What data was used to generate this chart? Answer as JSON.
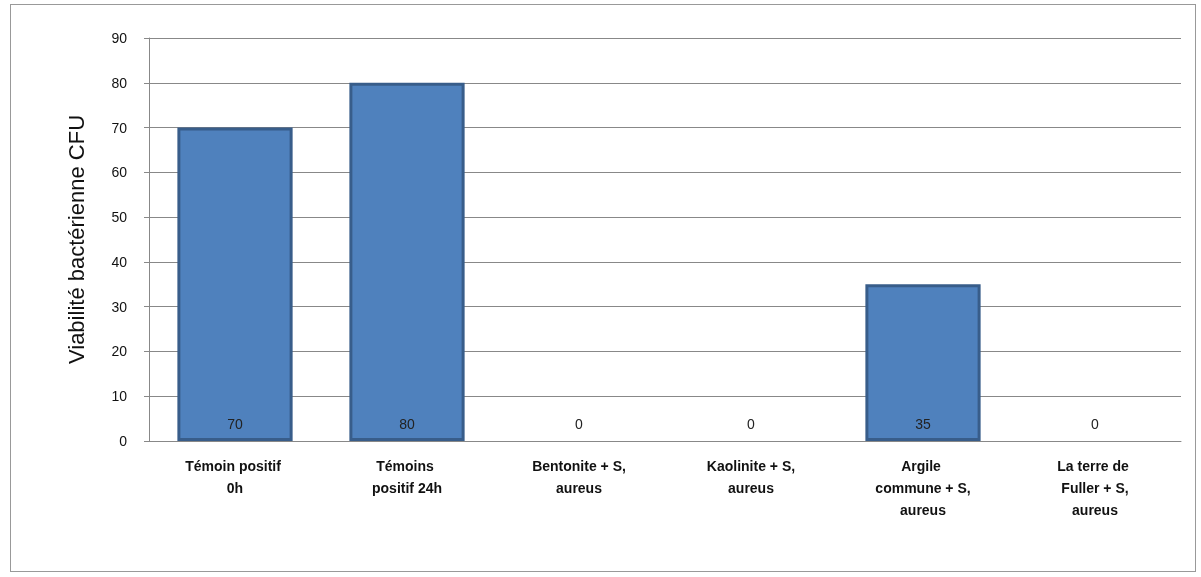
{
  "chart_data": {
    "type": "bar",
    "ylabel": "Viabilité bactérienne CFU",
    "categories": [
      "Témoin positif 0h",
      "Témoins positif 24h",
      "Bentonite + S,aureus",
      "Kaolinite + S,aureus",
      "Argile commune + S,aureus",
      "La terre de Fuller + S,aureus"
    ],
    "values": [
      70,
      80,
      0,
      0,
      35,
      0
    ],
    "color": "#4f81bd",
    "ylim": [
      0,
      90
    ],
    "yticks": [
      0,
      10,
      20,
      30,
      40,
      50,
      60,
      70,
      80,
      90
    ],
    "grid": "y",
    "data_labels": true
  }
}
